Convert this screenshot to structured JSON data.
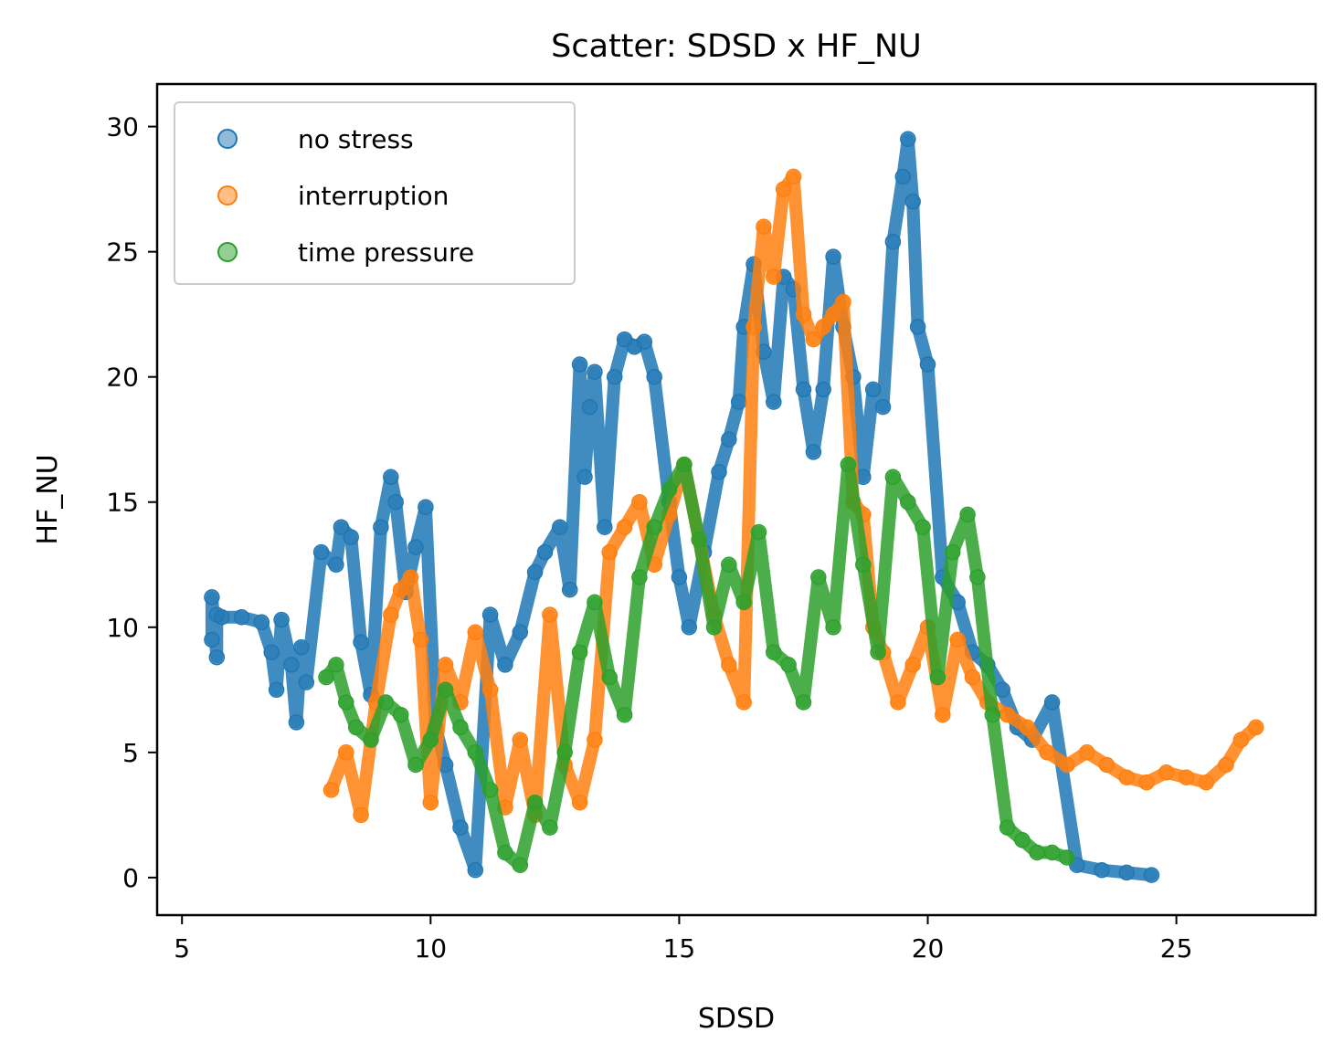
{
  "chart_data": {
    "type": "scatter",
    "title": "Scatter: SDSD x HF_NU",
    "xlabel": "SDSD",
    "ylabel": "HF_NU",
    "xlim": [
      4.5,
      27.8
    ],
    "ylim": [
      -1.5,
      31.7
    ],
    "xticks": [
      5,
      10,
      15,
      20,
      25
    ],
    "yticks": [
      0,
      5,
      10,
      15,
      20,
      25,
      30
    ],
    "grid": false,
    "legend_position": "top-left",
    "marker_opacity": 0.5,
    "series": [
      {
        "name": "no stress",
        "color": "#1f77b4",
        "x": [
          5.6,
          5.6,
          5.7,
          5.7,
          5.8,
          6.2,
          6.6,
          6.8,
          6.9,
          7.0,
          7.2,
          7.3,
          7.4,
          7.5,
          7.8,
          8.1,
          8.2,
          8.4,
          8.6,
          8.8,
          9.0,
          9.2,
          9.3,
          9.5,
          9.7,
          9.9,
          10.1,
          10.3,
          10.6,
          10.9,
          11.2,
          11.5,
          11.8,
          12.1,
          12.3,
          12.6,
          12.8,
          13.0,
          13.1,
          13.2,
          13.3,
          13.5,
          13.7,
          13.9,
          14.1,
          14.3,
          14.5,
          14.8,
          15.0,
          15.2,
          15.5,
          15.8,
          16.0,
          16.2,
          16.3,
          16.5,
          16.7,
          16.9,
          17.1,
          17.3,
          17.5,
          17.7,
          17.9,
          18.1,
          18.3,
          18.5,
          18.7,
          18.9,
          19.1,
          19.3,
          19.5,
          19.6,
          19.7,
          19.8,
          20.0,
          20.3,
          20.6,
          20.9,
          21.2,
          21.5,
          21.8,
          22.1,
          22.5,
          23.0,
          23.5,
          24.0,
          24.5
        ],
        "y": [
          9.5,
          11.2,
          8.8,
          10.5,
          10.4,
          10.4,
          10.2,
          9.0,
          7.5,
          10.3,
          8.5,
          6.2,
          9.2,
          7.8,
          13.0,
          12.5,
          14.0,
          13.6,
          9.4,
          7.3,
          14.0,
          16.0,
          15.0,
          11.4,
          13.2,
          14.8,
          6.0,
          4.5,
          2.0,
          0.3,
          10.5,
          8.5,
          9.8,
          12.2,
          13.0,
          14.0,
          11.5,
          20.5,
          16.0,
          18.8,
          20.2,
          14.0,
          20.0,
          21.5,
          21.2,
          21.4,
          20.0,
          15.0,
          12.0,
          10.0,
          13.0,
          16.2,
          17.5,
          19.0,
          22.0,
          24.5,
          21.0,
          19.0,
          24.0,
          23.5,
          19.5,
          17.0,
          19.5,
          24.8,
          22.0,
          20.0,
          16.0,
          19.5,
          18.8,
          25.4,
          28.0,
          29.5,
          27.0,
          22.0,
          20.5,
          12.0,
          11.0,
          9.0,
          8.5,
          7.5,
          6.0,
          5.5,
          7.0,
          0.5,
          0.3,
          0.2,
          0.1
        ]
      },
      {
        "name": "interruption",
        "color": "#ff7f0e",
        "x": [
          8.0,
          8.3,
          8.6,
          8.9,
          9.2,
          9.4,
          9.6,
          9.8,
          10.0,
          10.3,
          10.6,
          10.9,
          11.2,
          11.5,
          11.8,
          12.1,
          12.4,
          12.7,
          13.0,
          13.3,
          13.6,
          13.9,
          14.2,
          14.5,
          14.8,
          15.1,
          15.4,
          15.7,
          16.0,
          16.3,
          16.5,
          16.7,
          16.9,
          17.1,
          17.3,
          17.5,
          17.7,
          17.9,
          18.1,
          18.3,
          18.5,
          18.7,
          18.9,
          19.1,
          19.4,
          19.7,
          20.0,
          20.3,
          20.6,
          20.9,
          21.2,
          21.6,
          22.0,
          22.4,
          22.8,
          23.2,
          23.6,
          24.0,
          24.4,
          24.8,
          25.2,
          25.6,
          26.0,
          26.3,
          26.6
        ],
        "y": [
          3.5,
          5.0,
          2.5,
          7.0,
          10.5,
          11.5,
          12.0,
          9.5,
          3.0,
          8.5,
          7.0,
          9.8,
          7.5,
          2.8,
          5.5,
          2.5,
          10.5,
          4.5,
          3.0,
          5.5,
          13.0,
          14.0,
          15.0,
          12.5,
          14.5,
          16.5,
          13.5,
          10.5,
          8.5,
          7.0,
          22.0,
          26.0,
          24.0,
          27.5,
          28.0,
          22.5,
          21.5,
          22.0,
          22.5,
          23.0,
          15.0,
          14.5,
          10.0,
          9.0,
          7.0,
          8.5,
          10.0,
          6.5,
          9.5,
          8.0,
          7.0,
          6.5,
          6.0,
          5.0,
          4.5,
          5.0,
          4.5,
          4.0,
          3.8,
          4.2,
          4.0,
          3.8,
          4.5,
          5.5,
          6.0
        ]
      },
      {
        "name": "time pressure",
        "color": "#2ca02c",
        "x": [
          7.9,
          8.1,
          8.3,
          8.5,
          8.8,
          9.1,
          9.4,
          9.7,
          10.0,
          10.3,
          10.6,
          10.9,
          11.2,
          11.5,
          11.8,
          12.1,
          12.4,
          12.7,
          13.0,
          13.3,
          13.6,
          13.9,
          14.2,
          14.5,
          14.8,
          15.1,
          15.4,
          15.7,
          16.0,
          16.3,
          16.6,
          16.9,
          17.2,
          17.5,
          17.8,
          18.1,
          18.4,
          18.7,
          19.0,
          19.3,
          19.6,
          19.9,
          20.2,
          20.5,
          20.8,
          21.0,
          21.3,
          21.6,
          21.9,
          22.2,
          22.5,
          22.8
        ],
        "y": [
          8.0,
          8.5,
          7.0,
          6.0,
          5.5,
          7.0,
          6.5,
          4.5,
          5.5,
          7.5,
          6.0,
          5.0,
          3.5,
          1.0,
          0.5,
          3.0,
          2.0,
          5.0,
          9.0,
          11.0,
          8.0,
          6.5,
          12.0,
          14.0,
          15.5,
          16.5,
          13.5,
          10.0,
          12.5,
          11.0,
          13.8,
          9.0,
          8.5,
          7.0,
          12.0,
          10.0,
          16.5,
          12.5,
          9.0,
          16.0,
          15.0,
          14.0,
          8.0,
          13.0,
          14.5,
          12.0,
          6.5,
          2.0,
          1.5,
          1.0,
          1.0,
          0.8
        ]
      }
    ]
  }
}
